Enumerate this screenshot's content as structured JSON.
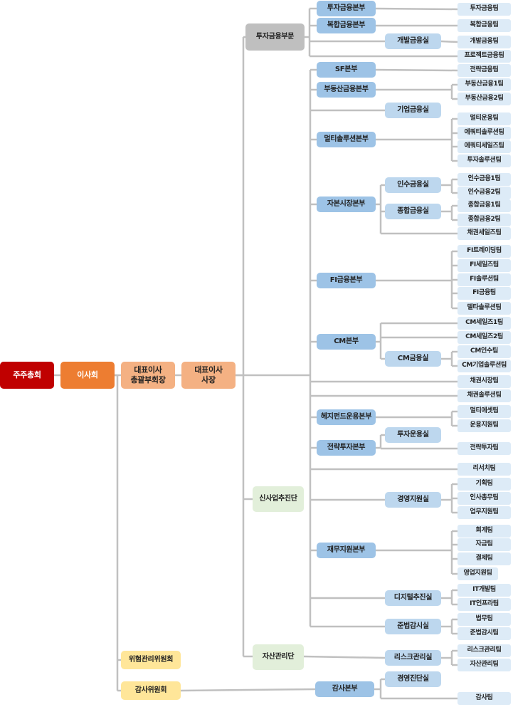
{
  "colors": {
    "shareholders": "#c00000",
    "board": "#ed7d31",
    "ceo": "#f4b183",
    "group_finance": "#bfbfbf",
    "group_other": "#e2efda",
    "committee": "#ffe699",
    "hq": "#9dc3e6",
    "office": "#bdd7ee",
    "team": "#ddebf7",
    "line": "#c0c0c0"
  },
  "top": [
    "주주총회",
    "이사회",
    "대표이사\n총괄부회장",
    "대표이사\n사장"
  ],
  "groups": [
    "투자금융부문",
    "신사업추진단",
    "자산관리단"
  ],
  "committees": [
    "위험관리위원회",
    "감사위원회"
  ],
  "hq": [
    "투자금융본부",
    "복합금융본부",
    "SF본부",
    "부동산금융본부",
    "멀티솔루션본부",
    "자본시장본부",
    "FI금융본부",
    "CM본부",
    "헤지펀드운용본부",
    "전략투자본부",
    "재무지원본부",
    "감사본부"
  ],
  "offices": [
    "개발금융실",
    "기업금융실",
    "인수금융실",
    "종합금융실",
    "CM금융실",
    "투자운용실",
    "경영지원실",
    "디지털추진실",
    "준법감시실",
    "리스크관리실",
    "경영진단실"
  ],
  "teams": [
    "투자금융팀",
    "복합금융팀",
    "개발금융팀",
    "프로젝트금융팀",
    "전략금융팀",
    "부동산금융1팀",
    "부동산금융2팀",
    "멀티운용팀",
    "에쿼티솔루션팀",
    "에쿼티세일즈팀",
    "투자솔루션팀",
    "인수금융1팀",
    "인수금융2팀",
    "종합금융1팀",
    "종합금융2팀",
    "채권세일즈팀",
    "FI트레이딩팀",
    "FI세일즈팀",
    "FI솔루션팀",
    "FI금융팀",
    "델타솔루션팀",
    "CM세일즈1팀",
    "CM세일즈2팀",
    "CM인수팀",
    "CM기업솔루션팀",
    "채권시장팀",
    "채권솔루션팀",
    "멀티에셋팀",
    "운용지원팀",
    "전략투자팀",
    "리서치팀",
    "기획팀",
    "인사총무팀",
    "업무지원팀",
    "회계팀",
    "자금팀",
    "결제팀",
    "영업지원팀",
    "IT개발팀",
    "IT인프라팀",
    "법무팀",
    "준법감시팀",
    "리스크관리팀",
    "자산관리팀",
    "감사팀"
  ]
}
